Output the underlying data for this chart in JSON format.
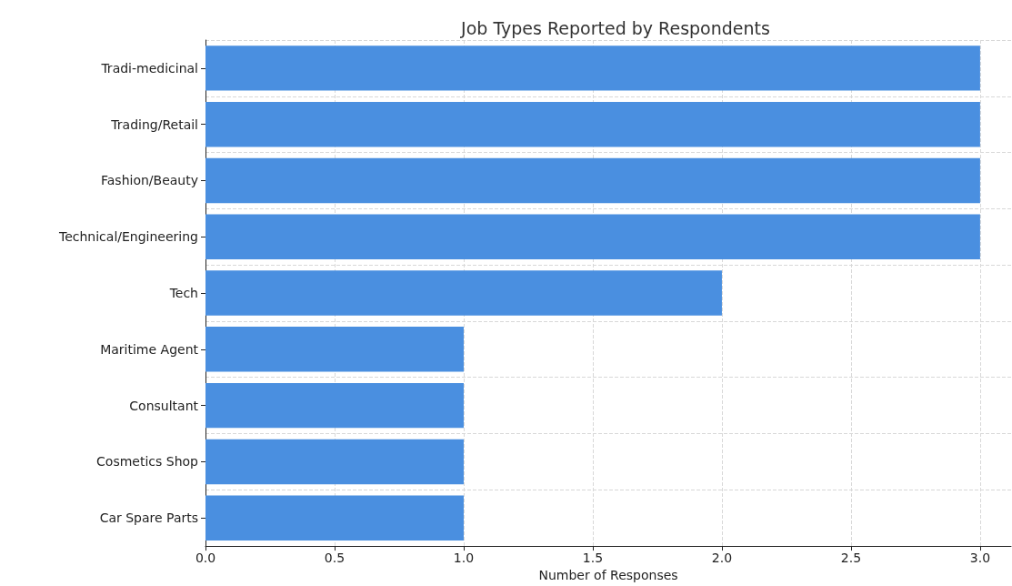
{
  "chart_data": {
    "type": "bar",
    "orientation": "horizontal",
    "title": "Job Types Reported by Respondents",
    "xlabel": "Number of Responses",
    "categories": [
      "Tradi-medicinal",
      "Trading/Retail",
      "Fashion/Beauty",
      "Technical/Engineering",
      "Tech",
      "Maritime Agent",
      "Consultant",
      "Cosmetics Shop",
      "Car Spare Parts"
    ],
    "values": [
      3,
      3,
      3,
      3,
      2,
      1,
      1,
      1,
      1
    ],
    "color": "#4a8fe0",
    "xlim": [
      0,
      3.12
    ],
    "xticks": [
      {
        "value": 0,
        "label": "0.0"
      },
      {
        "value": 0.5,
        "label": "0.5"
      },
      {
        "value": 1,
        "label": "1.0"
      },
      {
        "value": 1.5,
        "label": "1.5"
      },
      {
        "value": 2,
        "label": "2.0"
      },
      {
        "value": 2.5,
        "label": "2.5"
      },
      {
        "value": 3,
        "label": "3.0"
      }
    ],
    "grid": true
  }
}
